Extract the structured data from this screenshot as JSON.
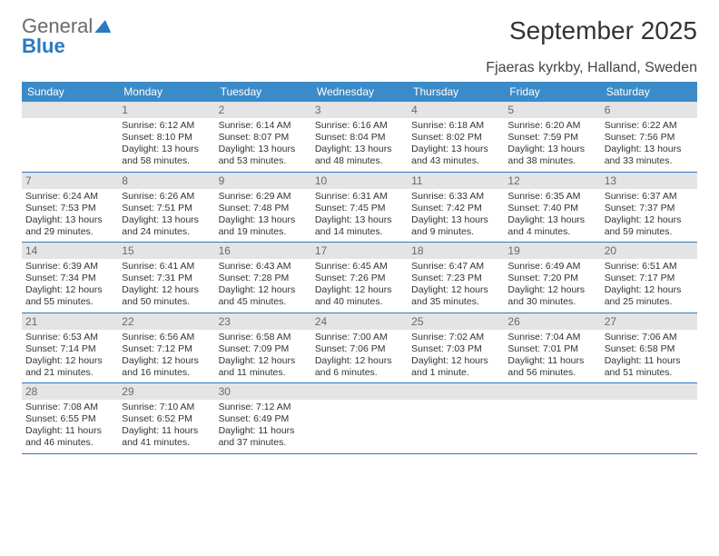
{
  "logo": {
    "text1": "General",
    "text2": "Blue"
  },
  "header": {
    "month_title": "September 2025",
    "location": "Fjaeras kyrkby, Halland, Sweden"
  },
  "colors": {
    "header_bg": "#3b8bc9",
    "header_text": "#ffffff",
    "daynum_bg": "#e4e4e4",
    "rule": "#2a7ac0",
    "logo_blue": "#2a7ac0",
    "logo_grey": "#6a6a6a"
  },
  "dow": [
    "Sunday",
    "Monday",
    "Tuesday",
    "Wednesday",
    "Thursday",
    "Friday",
    "Saturday"
  ],
  "weeks": [
    [
      {
        "n": "",
        "sr": "",
        "ss": "",
        "dl": ""
      },
      {
        "n": "1",
        "sr": "Sunrise: 6:12 AM",
        "ss": "Sunset: 8:10 PM",
        "dl": "Daylight: 13 hours and 58 minutes."
      },
      {
        "n": "2",
        "sr": "Sunrise: 6:14 AM",
        "ss": "Sunset: 8:07 PM",
        "dl": "Daylight: 13 hours and 53 minutes."
      },
      {
        "n": "3",
        "sr": "Sunrise: 6:16 AM",
        "ss": "Sunset: 8:04 PM",
        "dl": "Daylight: 13 hours and 48 minutes."
      },
      {
        "n": "4",
        "sr": "Sunrise: 6:18 AM",
        "ss": "Sunset: 8:02 PM",
        "dl": "Daylight: 13 hours and 43 minutes."
      },
      {
        "n": "5",
        "sr": "Sunrise: 6:20 AM",
        "ss": "Sunset: 7:59 PM",
        "dl": "Daylight: 13 hours and 38 minutes."
      },
      {
        "n": "6",
        "sr": "Sunrise: 6:22 AM",
        "ss": "Sunset: 7:56 PM",
        "dl": "Daylight: 13 hours and 33 minutes."
      }
    ],
    [
      {
        "n": "7",
        "sr": "Sunrise: 6:24 AM",
        "ss": "Sunset: 7:53 PM",
        "dl": "Daylight: 13 hours and 29 minutes."
      },
      {
        "n": "8",
        "sr": "Sunrise: 6:26 AM",
        "ss": "Sunset: 7:51 PM",
        "dl": "Daylight: 13 hours and 24 minutes."
      },
      {
        "n": "9",
        "sr": "Sunrise: 6:29 AM",
        "ss": "Sunset: 7:48 PM",
        "dl": "Daylight: 13 hours and 19 minutes."
      },
      {
        "n": "10",
        "sr": "Sunrise: 6:31 AM",
        "ss": "Sunset: 7:45 PM",
        "dl": "Daylight: 13 hours and 14 minutes."
      },
      {
        "n": "11",
        "sr": "Sunrise: 6:33 AM",
        "ss": "Sunset: 7:42 PM",
        "dl": "Daylight: 13 hours and 9 minutes."
      },
      {
        "n": "12",
        "sr": "Sunrise: 6:35 AM",
        "ss": "Sunset: 7:40 PM",
        "dl": "Daylight: 13 hours and 4 minutes."
      },
      {
        "n": "13",
        "sr": "Sunrise: 6:37 AM",
        "ss": "Sunset: 7:37 PM",
        "dl": "Daylight: 12 hours and 59 minutes."
      }
    ],
    [
      {
        "n": "14",
        "sr": "Sunrise: 6:39 AM",
        "ss": "Sunset: 7:34 PM",
        "dl": "Daylight: 12 hours and 55 minutes."
      },
      {
        "n": "15",
        "sr": "Sunrise: 6:41 AM",
        "ss": "Sunset: 7:31 PM",
        "dl": "Daylight: 12 hours and 50 minutes."
      },
      {
        "n": "16",
        "sr": "Sunrise: 6:43 AM",
        "ss": "Sunset: 7:28 PM",
        "dl": "Daylight: 12 hours and 45 minutes."
      },
      {
        "n": "17",
        "sr": "Sunrise: 6:45 AM",
        "ss": "Sunset: 7:26 PM",
        "dl": "Daylight: 12 hours and 40 minutes."
      },
      {
        "n": "18",
        "sr": "Sunrise: 6:47 AM",
        "ss": "Sunset: 7:23 PM",
        "dl": "Daylight: 12 hours and 35 minutes."
      },
      {
        "n": "19",
        "sr": "Sunrise: 6:49 AM",
        "ss": "Sunset: 7:20 PM",
        "dl": "Daylight: 12 hours and 30 minutes."
      },
      {
        "n": "20",
        "sr": "Sunrise: 6:51 AM",
        "ss": "Sunset: 7:17 PM",
        "dl": "Daylight: 12 hours and 25 minutes."
      }
    ],
    [
      {
        "n": "21",
        "sr": "Sunrise: 6:53 AM",
        "ss": "Sunset: 7:14 PM",
        "dl": "Daylight: 12 hours and 21 minutes."
      },
      {
        "n": "22",
        "sr": "Sunrise: 6:56 AM",
        "ss": "Sunset: 7:12 PM",
        "dl": "Daylight: 12 hours and 16 minutes."
      },
      {
        "n": "23",
        "sr": "Sunrise: 6:58 AM",
        "ss": "Sunset: 7:09 PM",
        "dl": "Daylight: 12 hours and 11 minutes."
      },
      {
        "n": "24",
        "sr": "Sunrise: 7:00 AM",
        "ss": "Sunset: 7:06 PM",
        "dl": "Daylight: 12 hours and 6 minutes."
      },
      {
        "n": "25",
        "sr": "Sunrise: 7:02 AM",
        "ss": "Sunset: 7:03 PM",
        "dl": "Daylight: 12 hours and 1 minute."
      },
      {
        "n": "26",
        "sr": "Sunrise: 7:04 AM",
        "ss": "Sunset: 7:01 PM",
        "dl": "Daylight: 11 hours and 56 minutes."
      },
      {
        "n": "27",
        "sr": "Sunrise: 7:06 AM",
        "ss": "Sunset: 6:58 PM",
        "dl": "Daylight: 11 hours and 51 minutes."
      }
    ],
    [
      {
        "n": "28",
        "sr": "Sunrise: 7:08 AM",
        "ss": "Sunset: 6:55 PM",
        "dl": "Daylight: 11 hours and 46 minutes."
      },
      {
        "n": "29",
        "sr": "Sunrise: 7:10 AM",
        "ss": "Sunset: 6:52 PM",
        "dl": "Daylight: 11 hours and 41 minutes."
      },
      {
        "n": "30",
        "sr": "Sunrise: 7:12 AM",
        "ss": "Sunset: 6:49 PM",
        "dl": "Daylight: 11 hours and 37 minutes."
      },
      {
        "n": "",
        "sr": "",
        "ss": "",
        "dl": ""
      },
      {
        "n": "",
        "sr": "",
        "ss": "",
        "dl": ""
      },
      {
        "n": "",
        "sr": "",
        "ss": "",
        "dl": ""
      },
      {
        "n": "",
        "sr": "",
        "ss": "",
        "dl": ""
      }
    ]
  ]
}
